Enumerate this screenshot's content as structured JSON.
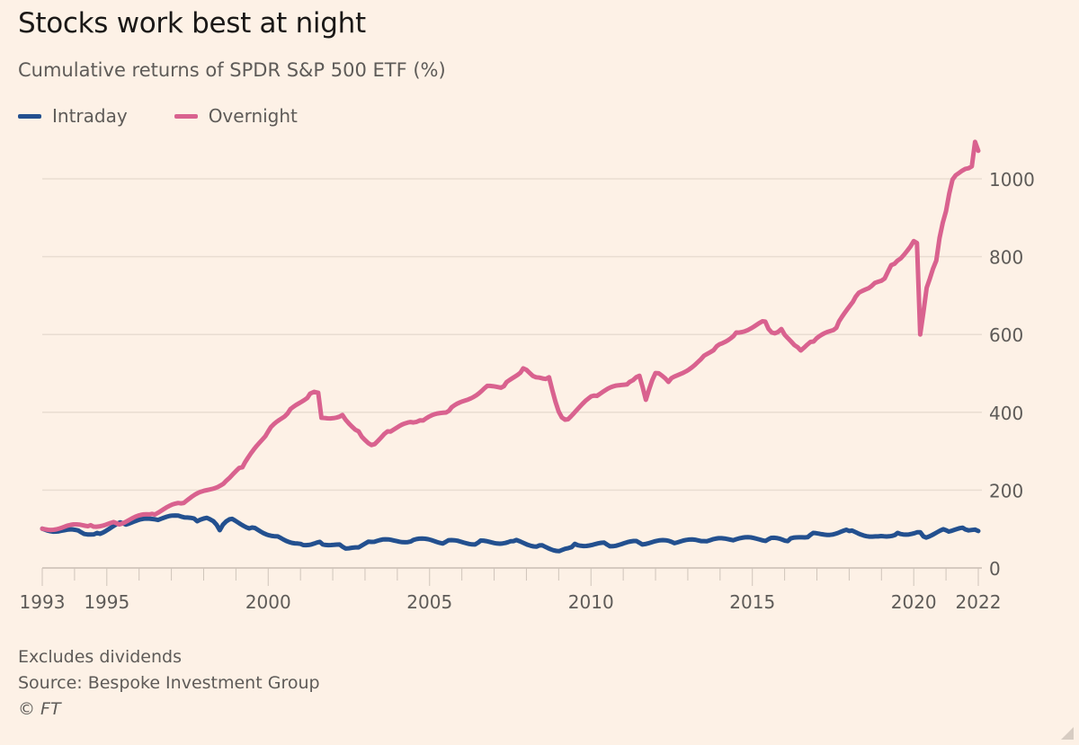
{
  "chart_data": {
    "type": "line",
    "title": "Stocks work best at night",
    "subtitle": "Cumulative returns of SPDR S&P 500 ETF (%)",
    "xlabel": "",
    "ylabel": "",
    "xlim": [
      1993,
      2022
    ],
    "ylim": [
      0,
      1100
    ],
    "x_ticks": [
      1993,
      1995,
      2000,
      2005,
      2010,
      2015,
      2020,
      2022
    ],
    "y_ticks": [
      0,
      200,
      400,
      600,
      800,
      1000
    ],
    "grid": "horizontal",
    "y_axis_side": "right",
    "legend_position": "top-left",
    "series": [
      {
        "name": "Intraday",
        "color": "#23508f",
        "x": [
          1993,
          1994.2,
          1994.7,
          1995.5,
          1996.5,
          1997.3,
          1997.8,
          1998.2,
          1998.5,
          1998.8,
          1999.5,
          2000.3,
          2001.0,
          2001.6,
          2002.3,
          2002.7,
          2003.2,
          2004.5,
          2005.5,
          2006.5,
          2007.6,
          2008.4,
          2009.1,
          2009.5,
          2010.5,
          2011.5,
          2012.5,
          2013.5,
          2014.5,
          2015.5,
          2016.1,
          2016.8,
          2018.0,
          2018.9,
          2019.5,
          2020.2,
          2020.3,
          2021.0,
          2021.6,
          2022.0
        ],
        "y": [
          101,
          92,
          90,
          115,
          125,
          132,
          120,
          125,
          97,
          125,
          104,
          81,
          62,
          67,
          55,
          53,
          67,
          72,
          67,
          65,
          69,
          58,
          46,
          62,
          60,
          65,
          67,
          69,
          74,
          74,
          69,
          85,
          95,
          81,
          90,
          92,
          81,
          97,
          99,
          95
        ]
      },
      {
        "name": "Overnight",
        "color": "#d9628f",
        "x": [
          1993,
          1994.5,
          1995.3,
          1996.4,
          1997.3,
          1998.7,
          1999.2,
          2000.0,
          2000.6,
          2001.3,
          2001.55,
          2001.65,
          2002.3,
          2002.8,
          2003.2,
          2003.7,
          2004.5,
          2004.8,
          2005.6,
          2006.7,
          2007.3,
          2007.9,
          2008.3,
          2008.7,
          2009.0,
          2009.2,
          2010.1,
          2011.2,
          2011.5,
          2011.7,
          2012.0,
          2012.4,
          2013.4,
          2013.9,
          2014.5,
          2015.4,
          2015.6,
          2015.9,
          2016.2,
          2016.5,
          2016.9,
          2017.6,
          2018.2,
          2018.7,
          2019.1,
          2019.3,
          2019.5,
          2020.0,
          2020.1,
          2020.2,
          2020.4,
          2020.7,
          2020.8,
          2021.0,
          2021.2,
          2021.5,
          2021.8,
          2021.9,
          2022.0
        ],
        "y": [
          101,
          110,
          115,
          139,
          166,
          224,
          259,
          351,
          397,
          448,
          450,
          386,
          393,
          351,
          316,
          351,
          374,
          379,
          404,
          462,
          467,
          513,
          490,
          490,
          402,
          381,
          443,
          478,
          494,
          432,
          501,
          478,
          536,
          570,
          605,
          633,
          605,
          614,
          582,
          559,
          582,
          617,
          697,
          725,
          744,
          778,
          790,
          840,
          835,
          600,
          720,
          790,
          848,
          917,
          998,
          1021,
          1032,
          1095,
          1072
        ]
      }
    ]
  },
  "footer": {
    "note": "Excludes dividends",
    "source": "Source: Bespoke Investment Group",
    "copyright": "© FT"
  }
}
